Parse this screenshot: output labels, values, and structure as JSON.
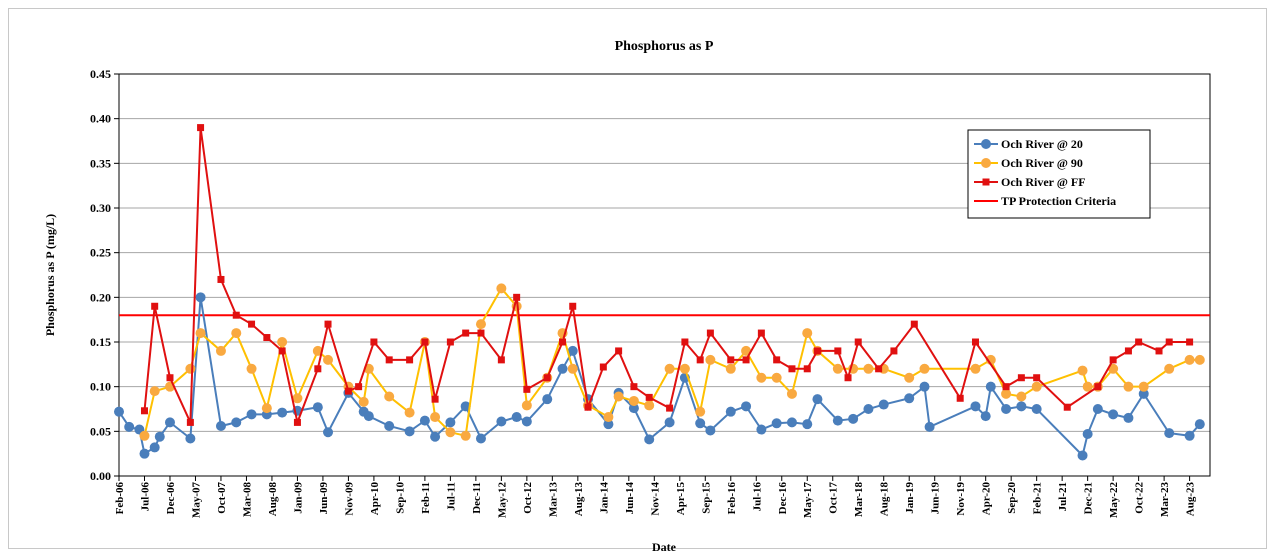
{
  "chart_data": {
    "type": "line",
    "title": "Phosphorus as P",
    "x_label": "Date",
    "y_label": "Phosphorus  as P (mg/L)",
    "xlim": [
      "2006-02",
      "2023-12"
    ],
    "xticks": [
      {
        "value": "2006-02",
        "label": "Feb-06"
      },
      {
        "value": "2006-07",
        "label": "Jul-06"
      },
      {
        "value": "2006-12",
        "label": "Dec-06"
      },
      {
        "value": "2007-05",
        "label": "May-07"
      },
      {
        "value": "2007-10",
        "label": "Oct-07"
      },
      {
        "value": "2008-03",
        "label": "Mar-08"
      },
      {
        "value": "2008-08",
        "label": "Aug-08"
      },
      {
        "value": "2009-01",
        "label": "Jan-09"
      },
      {
        "value": "2009-06",
        "label": "Jun-09"
      },
      {
        "value": "2009-11",
        "label": "Nov-09"
      },
      {
        "value": "2010-04",
        "label": "Apr-10"
      },
      {
        "value": "2010-09",
        "label": "Sep-10"
      },
      {
        "value": "2011-02",
        "label": "Feb-11"
      },
      {
        "value": "2011-07",
        "label": "Jul-11"
      },
      {
        "value": "2011-12",
        "label": "Dec-11"
      },
      {
        "value": "2012-05",
        "label": "May-12"
      },
      {
        "value": "2012-10",
        "label": "Oct-12"
      },
      {
        "value": "2013-03",
        "label": "Mar-13"
      },
      {
        "value": "2013-08",
        "label": "Aug-13"
      },
      {
        "value": "2014-01",
        "label": "Jan-14"
      },
      {
        "value": "2014-06",
        "label": "Jun-14"
      },
      {
        "value": "2014-11",
        "label": "Nov-14"
      },
      {
        "value": "2015-04",
        "label": "Apr-15"
      },
      {
        "value": "2015-09",
        "label": "Sep-15"
      },
      {
        "value": "2016-02",
        "label": "Feb-16"
      },
      {
        "value": "2016-07",
        "label": "Jul-16"
      },
      {
        "value": "2016-12",
        "label": "Dec-16"
      },
      {
        "value": "2017-05",
        "label": "May-17"
      },
      {
        "value": "2017-10",
        "label": "Oct-17"
      },
      {
        "value": "2018-03",
        "label": "Mar-18"
      },
      {
        "value": "2018-08",
        "label": "Aug-18"
      },
      {
        "value": "2019-01",
        "label": "Jan-19"
      },
      {
        "value": "2019-06",
        "label": "Jun-19"
      },
      {
        "value": "2019-11",
        "label": "Nov-19"
      },
      {
        "value": "2020-04",
        "label": "Apr-20"
      },
      {
        "value": "2020-09",
        "label": "Sep-20"
      },
      {
        "value": "2021-02",
        "label": "Feb-21"
      },
      {
        "value": "2021-07",
        "label": "Jul-21"
      },
      {
        "value": "2021-12",
        "label": "Dec-21"
      },
      {
        "value": "2022-05",
        "label": "May-22"
      },
      {
        "value": "2022-10",
        "label": "Oct-22"
      },
      {
        "value": "2023-03",
        "label": "Mar-23"
      },
      {
        "value": "2023-08",
        "label": "Aug-23"
      }
    ],
    "ylim": [
      0,
      0.45
    ],
    "yticks": [
      {
        "value": 0,
        "label": "0.00"
      },
      0.05,
      {
        "value": 0.1,
        "label": "0.10"
      },
      0.15,
      {
        "value": 0.2,
        "label": "0.20"
      },
      0.25,
      {
        "value": 0.3,
        "label": "0.30"
      },
      0.35,
      {
        "value": 0.4,
        "label": "0.40"
      },
      0.45
    ],
    "grid": true,
    "legend": "upper right",
    "series": [
      {
        "name": "Och River @ 20",
        "color": "#4a7ebb",
        "marker": "circle",
        "x": [
          "2006-02",
          "2006-04",
          "2006-06",
          "2006-07",
          "2006-09",
          "2006-10",
          "2006-12",
          "2007-04",
          "2007-06",
          "2007-10",
          "2008-01",
          "2008-04",
          "2008-07",
          "2008-10",
          "2009-01",
          "2009-05",
          "2009-07",
          "2009-11",
          "2010-02",
          "2010-03",
          "2010-07",
          "2010-11",
          "2011-02",
          "2011-04",
          "2011-07",
          "2011-10",
          "2012-01",
          "2012-05",
          "2012-08",
          "2012-10",
          "2013-02",
          "2013-05",
          "2013-07",
          "2013-10",
          "2014-02",
          "2014-04",
          "2014-07",
          "2014-10",
          "2015-02",
          "2015-05",
          "2015-08",
          "2015-10",
          "2016-02",
          "2016-05",
          "2016-08",
          "2016-11",
          "2017-02",
          "2017-05",
          "2017-07",
          "2017-11",
          "2018-02",
          "2018-05",
          "2018-08",
          "2019-01",
          "2019-04",
          "2019-05",
          "2020-02",
          "2020-04",
          "2020-05",
          "2020-08",
          "2020-11",
          "2021-02",
          "2021-11",
          "2021-12",
          "2022-02",
          "2022-05",
          "2022-08",
          "2022-11",
          "2023-04",
          "2023-08",
          "2023-10"
        ],
        "values": [
          0.072,
          0.055,
          0.052,
          0.025,
          0.032,
          0.044,
          0.06,
          0.042,
          0.2,
          0.056,
          0.06,
          0.069,
          0.069,
          0.071,
          0.073,
          0.077,
          0.049,
          0.093,
          0.072,
          0.067,
          0.056,
          0.05,
          0.062,
          0.044,
          0.06,
          0.078,
          0.042,
          0.061,
          0.066,
          0.061,
          0.086,
          0.12,
          0.14,
          0.086,
          0.058,
          0.093,
          0.076,
          0.041,
          0.06,
          0.11,
          0.059,
          0.051,
          0.072,
          0.078,
          0.052,
          0.059,
          0.06,
          0.058,
          0.086,
          0.062,
          0.064,
          0.075,
          0.08,
          0.087,
          0.1,
          0.055,
          0.078,
          0.067,
          0.1,
          0.075,
          0.078,
          0.075,
          0.023,
          0.047,
          0.075,
          0.069,
          0.065,
          0.092,
          0.048,
          0.045,
          0.058
        ]
      },
      {
        "name": "Och River @ 90",
        "color": "#ffc000",
        "marker_color": "#f9a940",
        "marker": "circle",
        "x": [
          "2006-07",
          "2006-09",
          "2006-12",
          "2007-04",
          "2007-06",
          "2007-10",
          "2008-01",
          "2008-04",
          "2008-07",
          "2008-10",
          "2009-01",
          "2009-05",
          "2009-07",
          "2009-11",
          "2010-02",
          "2010-03",
          "2010-07",
          "2010-11",
          "2011-02",
          "2011-04",
          "2011-07",
          "2011-10",
          "2012-01",
          "2012-05",
          "2012-08",
          "2012-10",
          "2013-02",
          "2013-05",
          "2013-07",
          "2013-10",
          "2014-02",
          "2014-04",
          "2014-07",
          "2014-10",
          "2015-02",
          "2015-05",
          "2015-08",
          "2015-10",
          "2016-02",
          "2016-05",
          "2016-08",
          "2016-11",
          "2017-02",
          "2017-05",
          "2017-07",
          "2017-11",
          "2018-02",
          "2018-05",
          "2018-08",
          "2019-01",
          "2019-04",
          "2020-02",
          "2020-05",
          "2020-08",
          "2020-11",
          "2021-02",
          "2021-11",
          "2021-12",
          "2022-02",
          "2022-05",
          "2022-08",
          "2022-11",
          "2023-04",
          "2023-08",
          "2023-10"
        ],
        "values": [
          0.045,
          0.095,
          0.1,
          0.12,
          0.16,
          0.14,
          0.16,
          0.12,
          0.076,
          0.15,
          0.087,
          0.14,
          0.13,
          0.1,
          0.083,
          0.12,
          0.089,
          0.071,
          0.15,
          0.066,
          0.049,
          0.045,
          0.17,
          0.21,
          0.19,
          0.079,
          0.11,
          0.16,
          0.12,
          0.079,
          0.066,
          0.089,
          0.084,
          0.079,
          0.12,
          0.12,
          0.072,
          0.13,
          0.12,
          0.14,
          0.11,
          0.11,
          0.092,
          0.16,
          0.14,
          0.12,
          0.12,
          0.12,
          0.12,
          0.11,
          0.12,
          0.12,
          0.13,
          0.092,
          0.089,
          0.1,
          0.118,
          0.1,
          0.1,
          0.12,
          0.1,
          0.1,
          0.12,
          0.13,
          0.13
        ]
      },
      {
        "name": "Och River @ FF",
        "color": "#e01010",
        "marker": "square",
        "x": [
          "2006-07",
          "2006-09",
          "2006-12",
          "2007-04",
          "2007-06",
          "2007-10",
          "2008-01",
          "2008-04",
          "2008-07",
          "2008-10",
          "2009-01",
          "2009-05",
          "2009-07",
          "2009-11",
          "2010-01",
          "2010-04",
          "2010-07",
          "2010-11",
          "2011-02",
          "2011-04",
          "2011-07",
          "2011-10",
          "2012-01",
          "2012-05",
          "2012-08",
          "2012-10",
          "2013-02",
          "2013-05",
          "2013-07",
          "2013-10",
          "2014-01",
          "2014-04",
          "2014-07",
          "2014-10",
          "2015-02",
          "2015-05",
          "2015-08",
          "2015-10",
          "2016-02",
          "2016-05",
          "2016-08",
          "2016-11",
          "2017-02",
          "2017-05",
          "2017-07",
          "2017-11",
          "2018-01",
          "2018-03",
          "2018-07",
          "2018-10",
          "2019-02",
          "2019-11",
          "2020-02",
          "2020-08",
          "2020-11",
          "2021-02",
          "2021-08",
          "2022-02",
          "2022-05",
          "2022-08",
          "2022-10",
          "2023-02",
          "2023-04",
          "2023-08"
        ],
        "values": [
          0.073,
          0.19,
          0.11,
          0.06,
          0.39,
          0.22,
          0.18,
          0.17,
          0.155,
          0.14,
          0.06,
          0.12,
          0.17,
          0.095,
          0.1,
          0.15,
          0.13,
          0.13,
          0.15,
          0.086,
          0.15,
          0.16,
          0.16,
          0.13,
          0.2,
          0.097,
          0.11,
          0.15,
          0.19,
          0.077,
          0.122,
          0.14,
          0.1,
          0.088,
          0.076,
          0.15,
          0.13,
          0.16,
          0.13,
          0.13,
          0.16,
          0.13,
          0.12,
          0.12,
          0.14,
          0.14,
          0.11,
          0.15,
          0.12,
          0.14,
          0.17,
          0.087,
          0.15,
          0.1,
          0.11,
          0.11,
          0.077,
          0.1,
          0.13,
          0.14,
          0.15,
          0.14,
          0.15,
          0.15
        ]
      }
    ],
    "threshold": {
      "name": "TP Protection Criteria",
      "color": "#ff0000",
      "value": 0.18
    }
  }
}
